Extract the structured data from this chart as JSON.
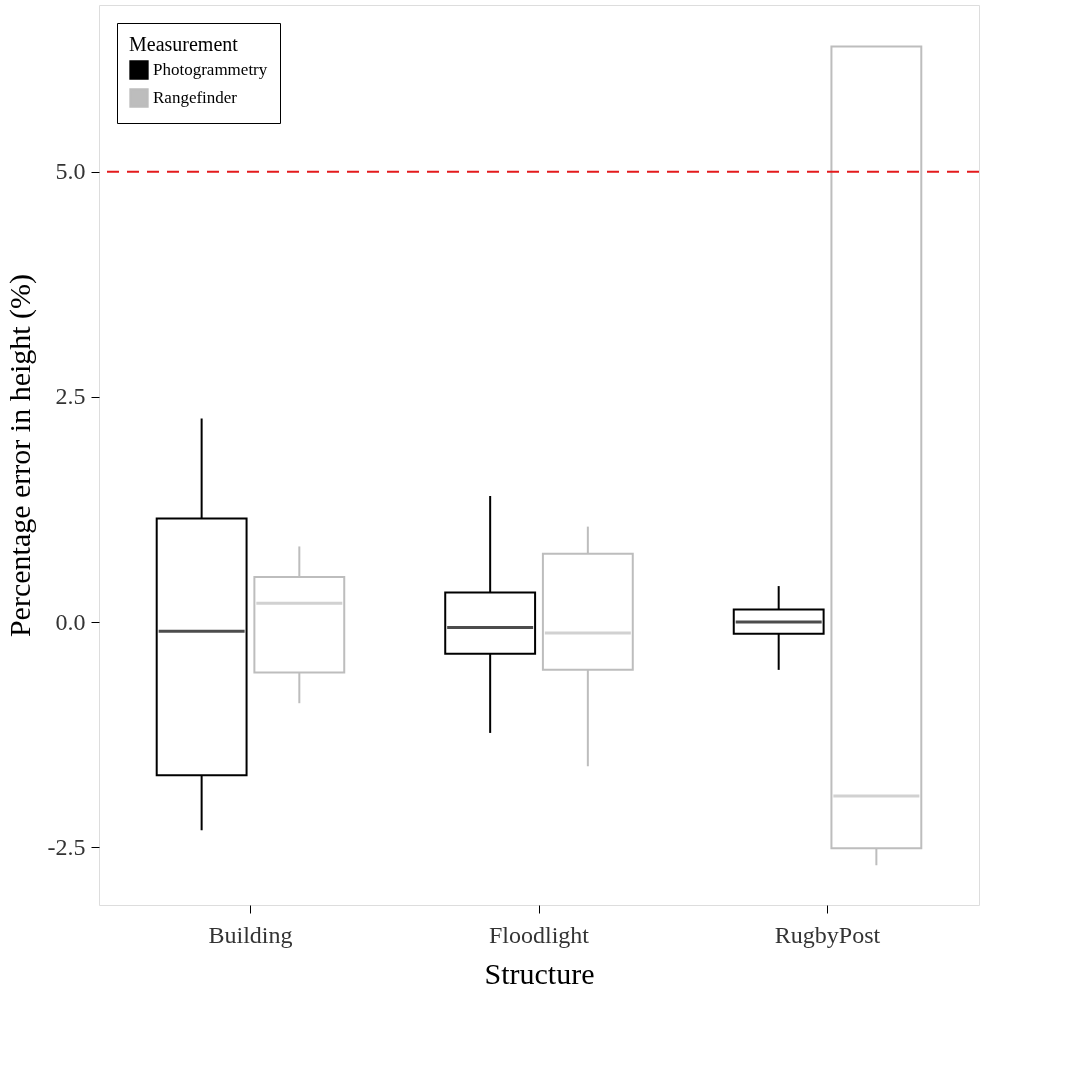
{
  "chart_data": {
    "type": "box",
    "xlabel": "Structure",
    "ylabel": "Percentage error in height (%)",
    "legend_title": "Measurement",
    "legend": "top left",
    "grid": false,
    "categories": [
      "Building",
      "Floodlight",
      "RugbyPost"
    ],
    "ylim": [
      -3.14,
      6.85
    ],
    "yticks": [
      {
        "value": -2.5,
        "label": "-2.5"
      },
      {
        "value": 0,
        "label": "0.0"
      },
      {
        "value": 2.5,
        "label": "2.5"
      },
      {
        "value": 5,
        "label": "5.0"
      }
    ],
    "series": [
      {
        "name": "Photogrammetry",
        "color": "#000000",
        "boxes": [
          {
            "low": -2.31,
            "q1": -1.7,
            "median": -0.1,
            "q3": 1.15,
            "high": 2.26
          },
          {
            "low": -1.23,
            "q1": -0.35,
            "median": -0.06,
            "q3": 0.33,
            "high": 1.4
          },
          {
            "low": -0.53,
            "q1": -0.13,
            "median": 0.0,
            "q3": 0.14,
            "high": 0.4
          }
        ]
      },
      {
        "name": "Rangefinder",
        "color": "#bdbdbd",
        "boxes": [
          {
            "low": -0.9,
            "q1": -0.56,
            "median": 0.21,
            "q3": 0.5,
            "high": 0.84
          },
          {
            "low": -1.6,
            "q1": -0.53,
            "median": -0.12,
            "q3": 0.76,
            "high": 1.06
          },
          {
            "low": -2.7,
            "q1": -2.51,
            "median": -1.93,
            "q3": 6.39,
            "high": 6.39
          }
        ]
      }
    ],
    "ref_lines": [
      {
        "axis": "y",
        "value": 5.0,
        "color": "#e41a1c",
        "line_style": "dashed"
      }
    ]
  }
}
